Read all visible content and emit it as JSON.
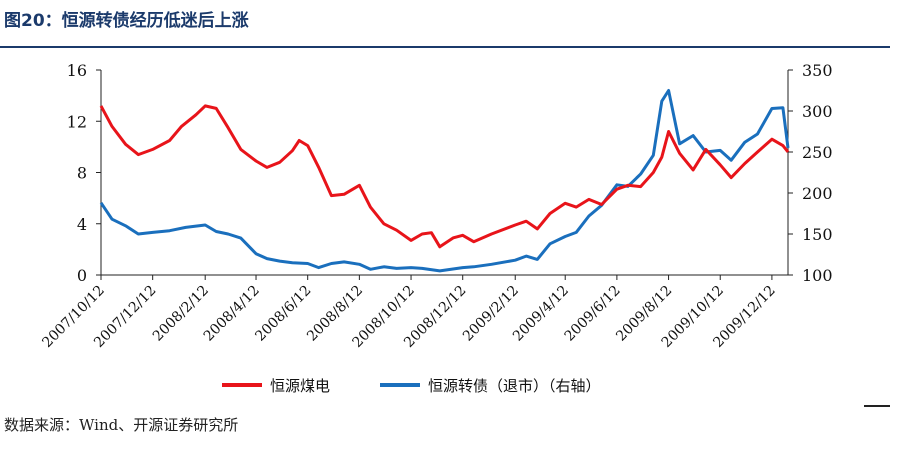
{
  "header": {
    "title": "图20：恒源转债经历低迷后上涨"
  },
  "footer": {
    "source": "数据来源：Wind、开源证券研究所"
  },
  "colors": {
    "series_red": "#e8141a",
    "series_blue": "#1a6fbd",
    "title": "#1b3a6b"
  },
  "chart_data": {
    "type": "line",
    "title": "",
    "xlabel": "",
    "ylabel_left": "",
    "ylabel_right": "",
    "x_ticks": [
      "2007/10/12",
      "2007/12/12",
      "2008/2/12",
      "2008/4/12",
      "2008/6/12",
      "2008/8/12",
      "2008/10/12",
      "2008/12/12",
      "2009/2/12",
      "2009/4/12",
      "2009/6/12",
      "2009/8/12",
      "2009/10/12",
      "2009/12/12"
    ],
    "y_left": {
      "min": 0,
      "max": 16,
      "ticks": [
        0,
        4,
        8,
        12,
        16
      ]
    },
    "y_right": {
      "min": 100,
      "max": 350,
      "ticks": [
        100,
        150,
        200,
        250,
        300,
        350
      ]
    },
    "grid": false,
    "legend": {
      "position": "bottom",
      "entries": [
        "恒源煤电",
        "恒源转债（退市）（右轴）"
      ]
    },
    "series": [
      {
        "name": "恒源煤电",
        "axis": "left",
        "x": [
          "2007-10-12",
          "2007-10-25",
          "2007-11-10",
          "2007-11-25",
          "2007-12-12",
          "2008-01-01",
          "2008-01-15",
          "2008-02-01",
          "2008-02-12",
          "2008-02-25",
          "2008-03-10",
          "2008-03-25",
          "2008-04-12",
          "2008-04-25",
          "2008-05-10",
          "2008-05-25",
          "2008-06-02",
          "2008-06-12",
          "2008-06-25",
          "2008-07-10",
          "2008-07-25",
          "2008-08-12",
          "2008-08-25",
          "2008-09-10",
          "2008-09-25",
          "2008-10-12",
          "2008-10-25",
          "2008-11-05",
          "2008-11-15",
          "2008-12-01",
          "2008-12-12",
          "2008-12-25",
          "2009-01-15",
          "2009-02-12",
          "2009-02-25",
          "2009-03-10",
          "2009-03-25",
          "2009-04-12",
          "2009-04-25",
          "2009-05-10",
          "2009-05-25",
          "2009-06-12",
          "2009-06-25",
          "2009-07-10",
          "2009-07-25",
          "2009-08-04",
          "2009-08-12",
          "2009-08-25",
          "2009-09-10",
          "2009-09-25",
          "2009-10-12",
          "2009-10-25",
          "2009-11-10",
          "2009-11-25",
          "2009-12-12",
          "2009-12-25",
          "2009-12-31"
        ],
        "values": [
          13.2,
          11.6,
          10.2,
          9.4,
          9.8,
          10.5,
          11.6,
          12.5,
          13.2,
          13.0,
          11.5,
          9.8,
          8.9,
          8.4,
          8.8,
          9.7,
          10.5,
          10.1,
          8.4,
          6.2,
          6.3,
          7.0,
          5.3,
          4.0,
          3.5,
          2.7,
          3.2,
          3.3,
          2.2,
          2.9,
          3.1,
          2.6,
          3.2,
          3.9,
          4.2,
          3.6,
          4.8,
          5.6,
          5.3,
          5.9,
          5.5,
          6.7,
          7.0,
          6.9,
          8.0,
          9.2,
          11.2,
          9.5,
          8.2,
          9.8,
          8.6,
          7.6,
          8.7,
          9.6,
          10.6,
          10.1,
          9.6
        ]
      },
      {
        "name": "恒源转债（退市）",
        "axis": "right",
        "x": [
          "2007-10-12",
          "2007-10-25",
          "2007-11-10",
          "2007-11-25",
          "2007-12-12",
          "2008-01-01",
          "2008-01-20",
          "2008-02-12",
          "2008-02-25",
          "2008-03-10",
          "2008-03-25",
          "2008-04-12",
          "2008-04-25",
          "2008-05-10",
          "2008-05-25",
          "2008-06-12",
          "2008-06-25",
          "2008-07-10",
          "2008-07-25",
          "2008-08-12",
          "2008-08-25",
          "2008-09-10",
          "2008-09-25",
          "2008-10-12",
          "2008-10-25",
          "2008-11-15",
          "2008-12-12",
          "2008-12-25",
          "2009-01-15",
          "2009-02-12",
          "2009-02-25",
          "2009-03-10",
          "2009-03-25",
          "2009-04-12",
          "2009-04-25",
          "2009-05-10",
          "2009-05-25",
          "2009-06-12",
          "2009-06-25",
          "2009-07-10",
          "2009-07-25",
          "2009-08-04",
          "2009-08-12",
          "2009-08-25",
          "2009-09-10",
          "2009-09-25",
          "2009-10-12",
          "2009-10-25",
          "2009-11-10",
          "2009-11-25",
          "2009-12-12",
          "2009-12-25",
          "2009-12-31"
        ],
        "values": [
          188,
          168,
          160,
          150,
          152,
          154,
          158,
          161,
          153,
          150,
          145,
          126,
          120,
          117,
          115,
          114,
          109,
          114,
          116,
          113,
          107,
          110,
          108,
          109,
          108,
          105,
          109,
          110,
          113,
          118,
          123,
          119,
          138,
          147,
          152,
          172,
          185,
          210,
          208,
          223,
          246,
          312,
          325,
          260,
          270,
          250,
          252,
          240,
          262,
          272,
          303,
          304,
          255
        ]
      }
    ]
  }
}
